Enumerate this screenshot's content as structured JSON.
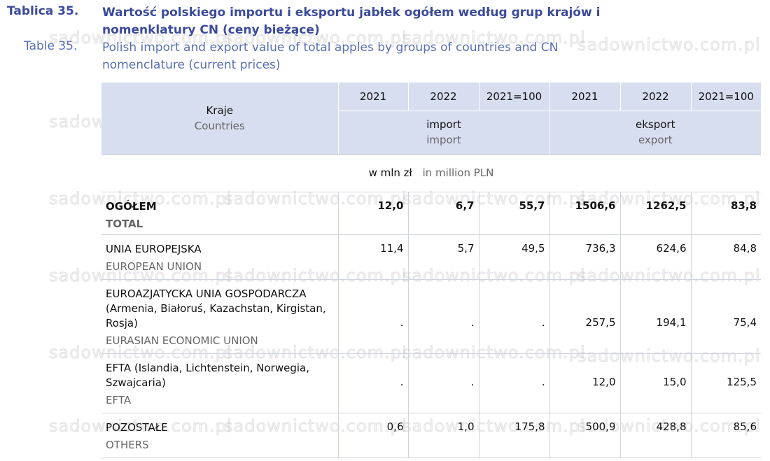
{
  "title": {
    "label_pl": "Tablica 35.",
    "text_pl": "Wartość polskiego importu i eksportu jabłek ogółem według grup krajów i nomenklatury CN (ceny bieżące)",
    "label_en": "Table 35.",
    "text_en": "Polish import and export value of total apples by groups of countries and CN nomenclature (current prices)"
  },
  "watermark": "sadownictwo.com.pl",
  "header": {
    "countries_pl": "Kraje",
    "countries_en": "Countries",
    "years": [
      "2021",
      "2022",
      "2021=100",
      "2021",
      "2022",
      "2021=100"
    ],
    "import_pl": "import",
    "import_en": "import",
    "export_pl": "eksport",
    "export_en": "export"
  },
  "unit": {
    "pl": "w mln zł",
    "en": "in million PLN"
  },
  "rows": [
    {
      "name_pl": "OGÓŁEM",
      "name_en": "TOTAL",
      "values": [
        "12,0",
        "6,7",
        "55,7",
        "1506,6",
        "1262,5",
        "83,8"
      ]
    },
    {
      "name_pl": "UNIA EUROPEJSKA",
      "name_en": "EUROPEAN UNION",
      "values": [
        "11,4",
        "5,7",
        "49,5",
        "736,3",
        "624,6",
        "84,8"
      ]
    },
    {
      "name_pl": "EUROAZJATYCKA UNIA GOSPODARCZA (Armenia, Białoruś, Kazachstan, Kirgistan, Rosja)",
      "name_en": "EURASIAN ECONOMIC UNION",
      "values": [
        ".",
        ".",
        ".",
        "257,5",
        "194,1",
        "75,4"
      ]
    },
    {
      "name_pl": "EFTA (Islandia, Lichtenstein, Norwegia, Szwajcaria)",
      "name_en": "EFTA",
      "values": [
        ".",
        ".",
        ".",
        "12,0",
        "15,0",
        "125,5"
      ]
    },
    {
      "name_pl": "POZOSTAŁE",
      "name_en": "OTHERS",
      "values": [
        "0,6",
        "1,0",
        "175,8",
        "500,9",
        "428,8",
        "85,6"
      ]
    }
  ]
}
